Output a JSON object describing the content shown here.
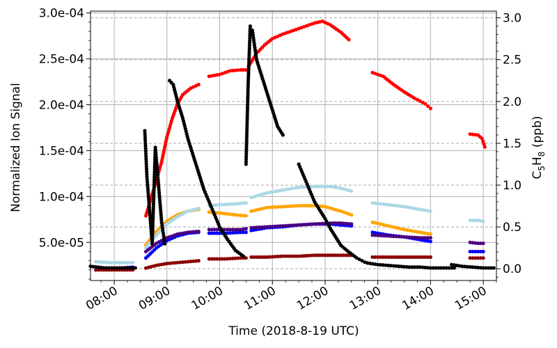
{
  "chart_data": {
    "type": "scatter",
    "xlabel": "Time (2018-8-19 UTC)",
    "ylabel": "Normalized Ion Signal",
    "y2label": "C5H8 (ppb)",
    "y2label_parts": {
      "main": "C",
      "sub1": "5",
      "mid": "H",
      "sub2": "8",
      "unit": " (ppb)"
    },
    "x_ticks": [
      "08:00",
      "09:00",
      "10:00",
      "11:00",
      "12:00",
      "13:00",
      "14:00",
      "15:00"
    ],
    "xlim_hours": [
      7.55,
      15.25
    ],
    "y_ticks": [
      "5.0e-05",
      "1.0e-04",
      "1.5e-04",
      "2.0e-04",
      "2.5e-04",
      "3.0e-04"
    ],
    "y_tick_values": [
      5e-05,
      0.0001,
      0.00015,
      0.0002,
      0.00025,
      0.0003
    ],
    "ylim": [
      8.5e-06,
      0.000302
    ],
    "y2_ticks": [
      "0.0",
      "0.5",
      "1.0",
      "1.5",
      "2.0",
      "2.5",
      "3.0"
    ],
    "y2_tick_values": [
      0.0,
      0.5,
      1.0,
      1.5,
      2.0,
      2.5,
      3.0
    ],
    "y2lim": [
      -0.14,
      3.08
    ],
    "grid": true,
    "secondary_grid": "dashed",
    "legend": "none",
    "series": [
      {
        "axis": "left",
        "color": "#ff0000",
        "segments": [
          {
            "x": [
              8.6,
              8.75,
              8.9,
              9.0,
              9.1,
              9.2,
              9.3,
              9.45,
              9.6
            ],
            "y": [
              7.9e-05,
              0.000108,
              0.000138,
              0.000165,
              0.000185,
              0.000201,
              0.000211,
              0.000218,
              0.000222
            ]
          },
          {
            "x": [
              9.8,
              10.0,
              10.2,
              10.4,
              10.5
            ],
            "y": [
              0.000231,
              0.000233,
              0.000237,
              0.000238,
              0.000238
            ]
          },
          {
            "x": [
              10.55,
              10.7,
              10.85,
              11.0,
              11.2,
              11.4,
              11.6,
              11.8,
              11.95,
              12.1,
              12.3,
              12.45
            ],
            "y": [
              0.000242,
              0.000256,
              0.000265,
              0.000272,
              0.000277,
              0.000281,
              0.000285,
              0.000289,
              0.000291,
              0.000287,
              0.000279,
              0.000271
            ]
          },
          {
            "x": [
              12.9,
              13.1,
              13.3,
              13.5,
              13.7,
              13.9,
              14.0
            ],
            "y": [
              0.000235,
              0.000231,
              0.000222,
              0.000214,
              0.000207,
              0.000201,
              0.000196
            ]
          },
          {
            "x": [
              14.75,
              14.9,
              14.98,
              15.03
            ],
            "y": [
              0.000168,
              0.000167,
              0.000163,
              0.000154
            ]
          }
        ]
      },
      {
        "axis": "left",
        "color": "#ffa500",
        "segments": [
          {
            "x": [
              8.6,
              8.8,
              9.0,
              9.2,
              9.4,
              9.6
            ],
            "y": [
              4.7e-05,
              6.2e-05,
              7.3e-05,
              8e-05,
              8.4e-05,
              8.6e-05
            ]
          },
          {
            "x": [
              9.8,
              10.0,
              10.3,
              10.5
            ],
            "y": [
              8.3e-05,
              8.2e-05,
              8e-05,
              7.9e-05
            ]
          },
          {
            "x": [
              10.6,
              10.9,
              11.2,
              11.5,
              11.8,
              12.0,
              12.3,
              12.5
            ],
            "y": [
              8.4e-05,
              8.8e-05,
              8.9e-05,
              9e-05,
              9e-05,
              8.9e-05,
              8.4e-05,
              8e-05
            ]
          },
          {
            "x": [
              12.9,
              13.2,
              13.5,
              13.8,
              14.0
            ],
            "y": [
              7.2e-05,
              6.8e-05,
              6.4e-05,
              6.1e-05,
              5.9e-05
            ]
          }
        ]
      },
      {
        "axis": "left",
        "color": "#add8e6",
        "segments": [
          {
            "x": [
              7.65,
              7.9,
              8.1,
              8.35
            ],
            "y": [
              2.9e-05,
              2.8e-05,
              2.8e-05,
              2.8e-05
            ]
          },
          {
            "x": [
              8.6,
              8.8,
              9.0,
              9.2,
              9.4,
              9.6
            ],
            "y": [
              4.4e-05,
              5.8e-05,
              7e-05,
              7.8e-05,
              8.4e-05,
              8.7e-05
            ]
          },
          {
            "x": [
              9.8,
              10.0,
              10.3,
              10.5
            ],
            "y": [
              9e-05,
              9.1e-05,
              9.2e-05,
              9.3e-05
            ]
          },
          {
            "x": [
              10.6,
              10.9,
              11.2,
              11.5,
              11.8,
              12.1,
              12.3,
              12.5
            ],
            "y": [
              9.9e-05,
              0.000104,
              0.000107,
              0.00011,
              0.000111,
              0.000111,
              0.000109,
              0.000106
            ]
          },
          {
            "x": [
              12.9,
              13.2,
              13.5,
              13.8,
              14.0
            ],
            "y": [
              9.3e-05,
              9.1e-05,
              8.9e-05,
              8.6e-05,
              8.4e-05
            ]
          },
          {
            "x": [
              14.75,
              14.9,
              15.0
            ],
            "y": [
              7.4e-05,
              7.4e-05,
              7.3e-05
            ]
          }
        ]
      },
      {
        "axis": "left",
        "color": "#0000ff",
        "segments": [
          {
            "x": [
              7.65,
              7.9,
              8.1,
              8.35
            ],
            "y": [
              2.3e-05,
              2.2e-05,
              2.2e-05,
              2.3e-05
            ]
          },
          {
            "x": [
              8.6,
              8.8,
              9.0,
              9.2,
              9.4,
              9.6
            ],
            "y": [
              3.3e-05,
              4.4e-05,
              5.2e-05,
              5.7e-05,
              6e-05,
              6.1e-05
            ]
          },
          {
            "x": [
              9.8,
              10.1,
              10.4,
              10.5
            ],
            "y": [
              6e-05,
              6e-05,
              6.1e-05,
              6.1e-05
            ]
          },
          {
            "x": [
              10.6,
              10.9,
              11.2,
              11.5,
              11.8,
              12.1,
              12.3,
              12.5
            ],
            "y": [
              6.3e-05,
              6.6e-05,
              6.7e-05,
              6.9e-05,
              7e-05,
              7e-05,
              6.9e-05,
              6.8e-05
            ]
          },
          {
            "x": [
              12.9,
              13.2,
              13.5,
              13.8,
              14.0
            ],
            "y": [
              6.1e-05,
              5.8e-05,
              5.6e-05,
              5.3e-05,
              5.1e-05
            ]
          },
          {
            "x": [
              14.75,
              14.9,
              15.0
            ],
            "y": [
              4e-05,
              4e-05,
              4e-05
            ]
          }
        ]
      },
      {
        "axis": "left",
        "color": "#4b0082",
        "segments": [
          {
            "x": [
              8.6,
              8.8,
              9.0,
              9.2,
              9.4,
              9.6
            ],
            "y": [
              4e-05,
              4.9e-05,
              5.5e-05,
              5.9e-05,
              6.1e-05,
              6.2e-05
            ]
          },
          {
            "x": [
              9.8,
              10.1,
              10.4,
              10.5
            ],
            "y": [
              6.4e-05,
              6.4e-05,
              6.4e-05,
              6.5e-05
            ]
          },
          {
            "x": [
              10.6,
              10.9,
              11.2,
              11.5,
              11.8,
              12.1,
              12.3,
              12.5
            ],
            "y": [
              6.6e-05,
              6.7e-05,
              6.8e-05,
              6.9e-05,
              7e-05,
              7.1e-05,
              7.1e-05,
              7e-05
            ]
          },
          {
            "x": [
              12.9,
              13.2,
              13.5,
              13.8,
              14.0
            ],
            "y": [
              5.8e-05,
              5.7e-05,
              5.6e-05,
              5.5e-05,
              5.5e-05
            ]
          },
          {
            "x": [
              14.75,
              14.9,
              15.0
            ],
            "y": [
              5e-05,
              4.9e-05,
              4.9e-05
            ]
          }
        ]
      },
      {
        "axis": "left",
        "color": "#8b0000",
        "segments": [
          {
            "x": [
              7.65,
              7.9,
              8.1,
              8.35
            ],
            "y": [
              2e-05,
              2e-05,
              2e-05,
              2e-05
            ]
          },
          {
            "x": [
              8.6,
              8.8,
              9.0,
              9.2,
              9.4,
              9.6
            ],
            "y": [
              2.2e-05,
              2.5e-05,
              2.7e-05,
              2.8e-05,
              2.9e-05,
              3e-05
            ]
          },
          {
            "x": [
              9.8,
              10.1,
              10.4,
              10.5
            ],
            "y": [
              3.2e-05,
              3.2e-05,
              3.3e-05,
              3.3e-05
            ]
          },
          {
            "x": [
              10.6,
              10.9,
              11.2,
              11.5,
              11.8,
              12.1,
              12.3,
              12.5
            ],
            "y": [
              3.4e-05,
              3.4e-05,
              3.5e-05,
              3.5e-05,
              3.6e-05,
              3.6e-05,
              3.6e-05,
              3.6e-05
            ]
          },
          {
            "x": [
              12.9,
              13.2,
              13.5,
              13.8,
              14.0
            ],
            "y": [
              3.4e-05,
              3.4e-05,
              3.4e-05,
              3.4e-05,
              3.4e-05
            ]
          },
          {
            "x": [
              14.75,
              14.9,
              15.0
            ],
            "y": [
              3.3e-05,
              3.3e-05,
              3.3e-05
            ]
          }
        ]
      },
      {
        "axis": "right",
        "color": "#000000",
        "segments": [
          {
            "x": [
              7.55,
              7.8,
              8.0,
              8.2,
              8.4
            ],
            "y": [
              0.03,
              0.01,
              0.01,
              0.01,
              0.01
            ]
          },
          {
            "x": [
              8.58,
              8.62,
              8.67,
              8.72,
              8.78,
              8.84,
              8.9,
              8.96
            ],
            "y": [
              1.65,
              1.1,
              0.7,
              0.3,
              1.45,
              1.0,
              0.55,
              0.3
            ]
          },
          {
            "x": [
              9.05,
              9.12,
              9.2,
              9.3,
              9.4,
              9.5,
              9.6,
              9.7,
              9.8,
              9.9,
              10.0,
              10.15,
              10.3,
              10.45
            ],
            "y": [
              2.25,
              2.2,
              2.0,
              1.8,
              1.55,
              1.35,
              1.15,
              0.95,
              0.8,
              0.65,
              0.5,
              0.35,
              0.22,
              0.15
            ]
          },
          {
            "x": [
              10.5,
              10.54,
              10.58,
              10.62,
              10.7,
              10.8,
              10.9,
              11.0,
              11.1,
              11.2
            ],
            "y": [
              1.25,
              2.2,
              2.9,
              2.85,
              2.5,
              2.3,
              2.1,
              1.9,
              1.7,
              1.6
            ]
          },
          {
            "x": [
              11.5,
              11.6,
              11.7,
              11.8,
              11.9,
              12.0,
              12.1,
              12.2,
              12.3,
              12.45,
              12.6,
              12.75
            ],
            "y": [
              1.25,
              1.1,
              0.95,
              0.8,
              0.7,
              0.6,
              0.48,
              0.38,
              0.28,
              0.2,
              0.13,
              0.08
            ]
          },
          {
            "x": [
              12.8,
              13.0,
              13.2,
              13.4,
              13.6,
              13.8,
              14.0,
              14.2,
              14.45
            ],
            "y": [
              0.07,
              0.05,
              0.04,
              0.03,
              0.02,
              0.02,
              0.01,
              0.01,
              0.01
            ]
          },
          {
            "x": [
              14.4,
              14.6,
              14.8,
              15.0,
              15.2
            ],
            "y": [
              0.05,
              0.03,
              0.02,
              0.01,
              0.01
            ]
          }
        ]
      }
    ]
  }
}
